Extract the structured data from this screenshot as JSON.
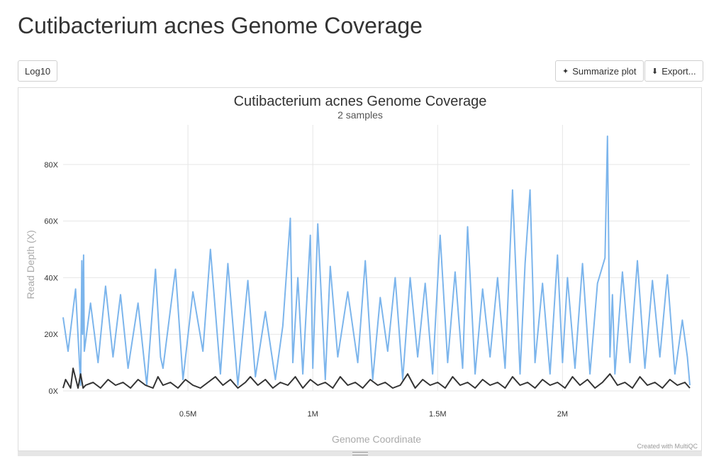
{
  "page": {
    "title": "Cutibacterium acnes Genome Coverage"
  },
  "toolbar": {
    "log_label": "Log10",
    "summarize_label": "Summarize plot",
    "export_label": "Export..."
  },
  "credit": "Created with MultiQC",
  "colors": {
    "series_1": "#7cb5ec",
    "series_2": "#333333"
  },
  "chart_data": {
    "type": "line",
    "title": "Cutibacterium acnes Genome Coverage",
    "subtitle": "2 samples",
    "xlabel": "Genome Coordinate",
    "ylabel": "Read Depth (X)",
    "xlim": [
      0,
      2510000
    ],
    "ylim": [
      0,
      94
    ],
    "yticks": [
      0,
      20,
      40,
      60,
      80
    ],
    "ytick_labels": [
      "0X",
      "20X",
      "40X",
      "60X",
      "80X"
    ],
    "xticks": [
      500000,
      1000000,
      1500000,
      2000000
    ],
    "xtick_labels": [
      "0.5M",
      "1M",
      "1.5M",
      "2M"
    ],
    "grid": true,
    "series": [
      {
        "color": "#7cb5ec",
        "x": [
          0,
          20000,
          50000,
          70000,
          75000,
          78000,
          82000,
          85000,
          110000,
          140000,
          170000,
          200000,
          230000,
          260000,
          300000,
          335000,
          370000,
          390000,
          400000,
          450000,
          480000,
          520000,
          560000,
          590000,
          630000,
          660000,
          700000,
          740000,
          770000,
          810000,
          850000,
          880000,
          910000,
          920000,
          940000,
          960000,
          990000,
          1000000,
          1020000,
          1050000,
          1070000,
          1100000,
          1140000,
          1180000,
          1210000,
          1240000,
          1270000,
          1300000,
          1330000,
          1360000,
          1390000,
          1420000,
          1450000,
          1480000,
          1510000,
          1540000,
          1570000,
          1600000,
          1620000,
          1650000,
          1680000,
          1710000,
          1740000,
          1770000,
          1800000,
          1830000,
          1850000,
          1870000,
          1890000,
          1920000,
          1950000,
          1980000,
          2000000,
          2020000,
          2050000,
          2080000,
          2110000,
          2140000,
          2170000,
          2180000,
          2190000,
          2200000,
          2210000,
          2240000,
          2270000,
          2300000,
          2330000,
          2360000,
          2390000,
          2420000,
          2450000,
          2480000,
          2500000,
          2510000
        ],
        "y": [
          26,
          14,
          36,
          2,
          46,
          20,
          48,
          14,
          31,
          10,
          37,
          12,
          34,
          8,
          31,
          2,
          43,
          12,
          8,
          43,
          4,
          35,
          14,
          50,
          6,
          45,
          2,
          39,
          5,
          28,
          4,
          23,
          61,
          10,
          40,
          6,
          55,
          8,
          59,
          4,
          44,
          12,
          35,
          10,
          46,
          4,
          33,
          14,
          40,
          4,
          40,
          12,
          38,
          6,
          55,
          10,
          42,
          8,
          58,
          6,
          36,
          12,
          40,
          8,
          71,
          6,
          45,
          71,
          10,
          38,
          6,
          48,
          10,
          40,
          8,
          45,
          6,
          38,
          47,
          90,
          12,
          34,
          6,
          42,
          10,
          46,
          8,
          39,
          12,
          41,
          6,
          25,
          12,
          2
        ]
      },
      {
        "color": "#333333",
        "x": [
          0,
          10000,
          30000,
          40000,
          60000,
          70000,
          80000,
          90000,
          120000,
          150000,
          180000,
          210000,
          240000,
          270000,
          300000,
          330000,
          360000,
          380000,
          400000,
          430000,
          460000,
          490000,
          520000,
          550000,
          580000,
          610000,
          640000,
          670000,
          700000,
          730000,
          750000,
          780000,
          810000,
          840000,
          870000,
          900000,
          930000,
          960000,
          990000,
          1020000,
          1050000,
          1080000,
          1110000,
          1140000,
          1170000,
          1200000,
          1230000,
          1260000,
          1290000,
          1320000,
          1350000,
          1380000,
          1410000,
          1440000,
          1470000,
          1500000,
          1530000,
          1560000,
          1590000,
          1620000,
          1650000,
          1680000,
          1710000,
          1740000,
          1770000,
          1800000,
          1830000,
          1860000,
          1890000,
          1920000,
          1950000,
          1980000,
          2010000,
          2040000,
          2070000,
          2100000,
          2130000,
          2160000,
          2190000,
          2220000,
          2250000,
          2280000,
          2310000,
          2340000,
          2370000,
          2400000,
          2430000,
          2460000,
          2490000,
          2510000
        ],
        "y": [
          1,
          4,
          1,
          8,
          1,
          6,
          1,
          2,
          3,
          1,
          4,
          2,
          3,
          1,
          4,
          2,
          1,
          5,
          2,
          3,
          1,
          4,
          2,
          1,
          3,
          5,
          2,
          4,
          1,
          3,
          5,
          2,
          4,
          1,
          3,
          2,
          5,
          1,
          4,
          2,
          3,
          1,
          5,
          2,
          3,
          1,
          4,
          2,
          3,
          1,
          2,
          6,
          1,
          4,
          2,
          3,
          1,
          5,
          2,
          3,
          1,
          4,
          2,
          3,
          1,
          5,
          2,
          3,
          1,
          4,
          2,
          3,
          1,
          5,
          2,
          4,
          1,
          3,
          6,
          2,
          3,
          1,
          5,
          2,
          3,
          1,
          4,
          2,
          3,
          1
        ]
      }
    ]
  }
}
